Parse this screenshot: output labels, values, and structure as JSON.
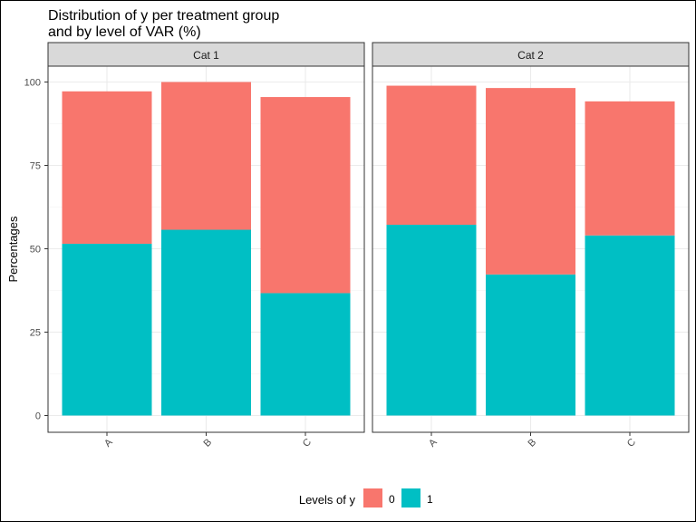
{
  "chart_data": {
    "type": "bar",
    "stacked": true,
    "title_lines": [
      "Distribution of y per treatment group",
      "and by level of VAR (%)"
    ],
    "ylabel": "Percentages",
    "xlabel": "",
    "ylim": [
      0,
      110
    ],
    "yticks": [
      0,
      25,
      50,
      75,
      100
    ],
    "grid": true,
    "legend": {
      "title": "Levels of y",
      "placement": "bottom",
      "entries": [
        "0",
        "1"
      ]
    },
    "colors": {
      "0": "#F8766D",
      "1": "#00BFC4"
    },
    "categories": [
      "A",
      "B",
      "C"
    ],
    "panels": [
      {
        "label": "Cat 1",
        "series": [
          {
            "name": "1",
            "values": [
              51.5,
              55.7,
              36.7
            ]
          },
          {
            "name": "0",
            "values": [
              45.7,
              44.3,
              58.8
            ]
          }
        ]
      },
      {
        "label": "Cat 2",
        "series": [
          {
            "name": "1",
            "values": [
              57.2,
              42.3,
              54.0
            ]
          },
          {
            "name": "0",
            "values": [
              41.7,
              55.9,
              40.2
            ]
          }
        ]
      }
    ]
  }
}
